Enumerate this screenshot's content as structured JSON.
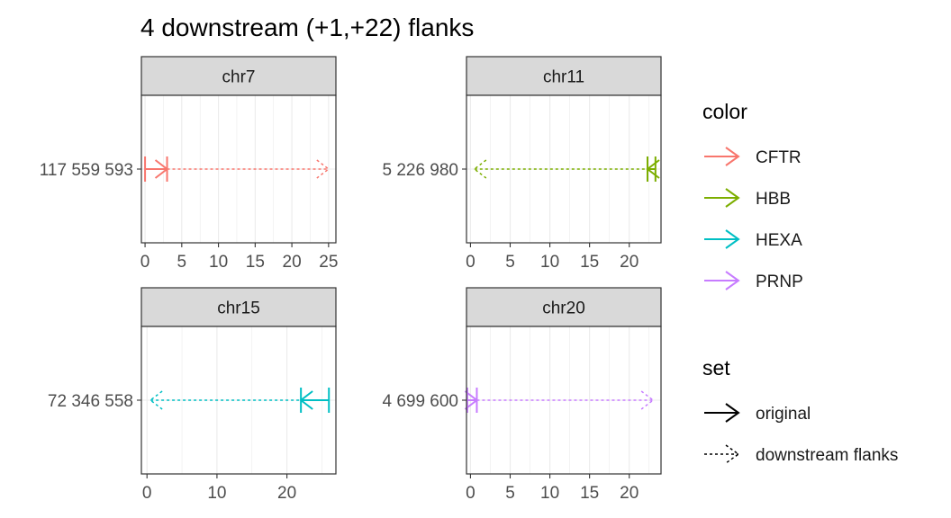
{
  "chart_data": {
    "type": "interval",
    "title": "4 downstream (+1,+22) flanks",
    "xlabel": "",
    "ylabel": "",
    "facets": [
      {
        "strip": "chr7",
        "y_label": "117 559 593",
        "xlim": [
          -0.5,
          26
        ],
        "x_ticks": [
          0,
          5,
          10,
          15,
          20,
          25
        ],
        "intervals": [
          {
            "color": "CFTR",
            "set": "original",
            "start": 0,
            "end": 3,
            "strand": "+"
          },
          {
            "color": "CFTR",
            "set": "downstream flanks",
            "start": 3,
            "end": 25,
            "strand": "+"
          }
        ]
      },
      {
        "strip": "chr11",
        "y_label": "5 226 980",
        "xlim": [
          -0.5,
          24
        ],
        "x_ticks": [
          0,
          5,
          10,
          15,
          20
        ],
        "intervals": [
          {
            "color": "HBB",
            "set": "original",
            "start": 22.3,
            "end": 23.3,
            "strand": "-"
          },
          {
            "color": "HBB",
            "set": "downstream flanks",
            "start": 0.5,
            "end": 22.3,
            "strand": "-"
          }
        ]
      },
      {
        "strip": "chr15",
        "y_label": "72 346 558",
        "xlim": [
          -0.8,
          27
        ],
        "x_ticks": [
          0,
          10,
          20
        ],
        "intervals": [
          {
            "color": "HEXA",
            "set": "original",
            "start": 22,
            "end": 26,
            "strand": "-"
          },
          {
            "color": "HEXA",
            "set": "downstream flanks",
            "start": 0.5,
            "end": 22,
            "strand": "-"
          }
        ]
      },
      {
        "strip": "chr20",
        "y_label": "4 699 600",
        "xlim": [
          -0.5,
          24
        ],
        "x_ticks": [
          0,
          5,
          10,
          15,
          20
        ],
        "intervals": [
          {
            "color": "PRNP",
            "set": "original",
            "start": -0.4,
            "end": 0.8,
            "strand": "+"
          },
          {
            "color": "PRNP",
            "set": "downstream flanks",
            "start": 0.8,
            "end": 23,
            "strand": "+"
          }
        ]
      }
    ],
    "legend": {
      "placement": "right",
      "color": {
        "title": "color",
        "items": [
          {
            "label": "CFTR",
            "hex": "#F8766D"
          },
          {
            "label": "HBB",
            "hex": "#7CAE00"
          },
          {
            "label": "HEXA",
            "hex": "#00BFC4"
          },
          {
            "label": "PRNP",
            "hex": "#C77CFF"
          }
        ]
      },
      "set": {
        "title": "set",
        "items": [
          {
            "label": "original",
            "linetype": "solid"
          },
          {
            "label": "downstream flanks",
            "linetype": "dashed"
          }
        ]
      }
    },
    "grid": true,
    "colors": {
      "strip_bg": "#D9D9D9",
      "panel_border": "#333333",
      "grid": "#EBEBEB",
      "text": "#4D4D4D",
      "title": "#000000"
    }
  }
}
